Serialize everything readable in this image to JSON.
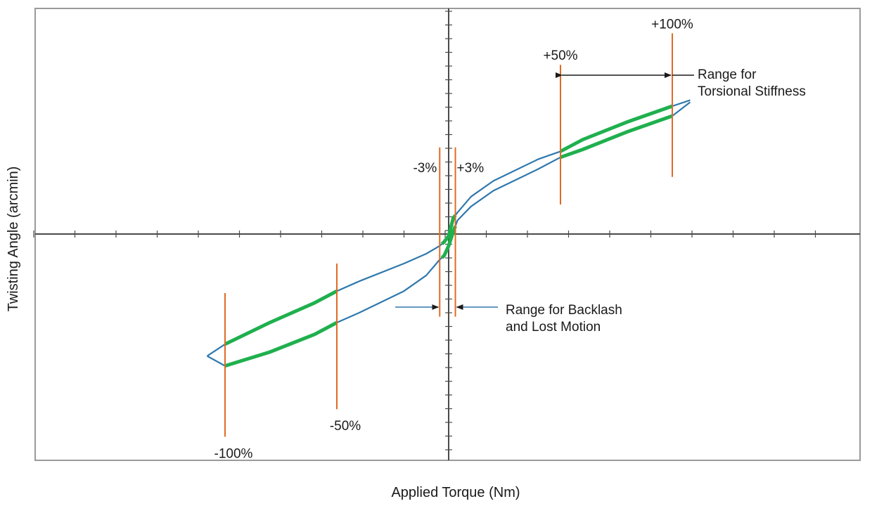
{
  "chart_data": {
    "type": "line",
    "title": "",
    "xlabel": "Applied Torque (Nm)",
    "ylabel": "Twisting Angle (arcmin)",
    "xlim": [
      -120,
      120
    ],
    "ylim": [
      -120,
      120
    ],
    "grid": false,
    "colors": {
      "hysteresis_curve": "#2f78ad",
      "highlight": "#1fb04e",
      "range_markers": "#e06a24",
      "axes": "#4a4a4a",
      "frame": "#9a9a9a"
    },
    "series": [
      {
        "values": [
          {
            "x": -108,
            "y": -62
          },
          {
            "x": -100,
            "y": -56
          },
          {
            "x": -80,
            "y": -45
          },
          {
            "x": -60,
            "y": -35
          },
          {
            "x": -50,
            "y": -29
          },
          {
            "x": -40,
            "y": -24
          },
          {
            "x": -20,
            "y": -15
          },
          {
            "x": -10,
            "y": -10
          },
          {
            "x": -4,
            "y": -6
          },
          {
            "x": -2,
            "y": -4
          },
          {
            "x": 0,
            "y": -1
          },
          {
            "x": 2,
            "y": 8
          },
          {
            "x": 4,
            "y": 11
          },
          {
            "x": 10,
            "y": 19
          },
          {
            "x": 20,
            "y": 27
          },
          {
            "x": 40,
            "y": 38
          },
          {
            "x": 50,
            "y": 42
          },
          {
            "x": 60,
            "y": 48
          },
          {
            "x": 80,
            "y": 57
          },
          {
            "x": 100,
            "y": 65
          },
          {
            "x": 108,
            "y": 68
          }
        ]
      },
      {
        "values": [
          {
            "x": 108,
            "y": 67
          },
          {
            "x": 100,
            "y": 60
          },
          {
            "x": 80,
            "y": 52
          },
          {
            "x": 60,
            "y": 43
          },
          {
            "x": 50,
            "y": 39
          },
          {
            "x": 40,
            "y": 33
          },
          {
            "x": 20,
            "y": 22
          },
          {
            "x": 10,
            "y": 14
          },
          {
            "x": 4,
            "y": 7
          },
          {
            "x": 2,
            "y": 1
          },
          {
            "x": 0,
            "y": -6
          },
          {
            "x": -2,
            "y": -11
          },
          {
            "x": -4,
            "y": -13
          },
          {
            "x": -10,
            "y": -21
          },
          {
            "x": -20,
            "y": -29
          },
          {
            "x": -40,
            "y": -40
          },
          {
            "x": -50,
            "y": -45
          },
          {
            "x": -60,
            "y": -51
          },
          {
            "x": -80,
            "y": -60
          },
          {
            "x": -100,
            "y": -67
          },
          {
            "x": -108,
            "y": -62
          }
        ]
      }
    ],
    "highlight_ranges": [
      [
        50,
        100
      ],
      [
        -100,
        -50
      ],
      [
        -3,
        3
      ]
    ],
    "markers": [
      {
        "x": 100,
        "y_range": [
          29,
          102
        ],
        "label": "+100%"
      },
      {
        "x": 50,
        "y_range": [
          15,
          86
        ],
        "label": "+50%"
      },
      {
        "x": -100,
        "y_range": [
          -103,
          -30
        ],
        "label": "-100%"
      },
      {
        "x": -50,
        "y_range": [
          -89,
          -15
        ],
        "label": "-50%"
      },
      {
        "x": -4,
        "y_range": [
          -42,
          44
        ],
        "label": "-3%"
      },
      {
        "x": 3,
        "y_range": [
          -42,
          44
        ],
        "label": "+3%"
      }
    ],
    "annotations": [
      {
        "text": "Range for\nTorsional Stiffness"
      },
      {
        "text": "Range for Backlash\nand Lost Motion"
      }
    ]
  }
}
